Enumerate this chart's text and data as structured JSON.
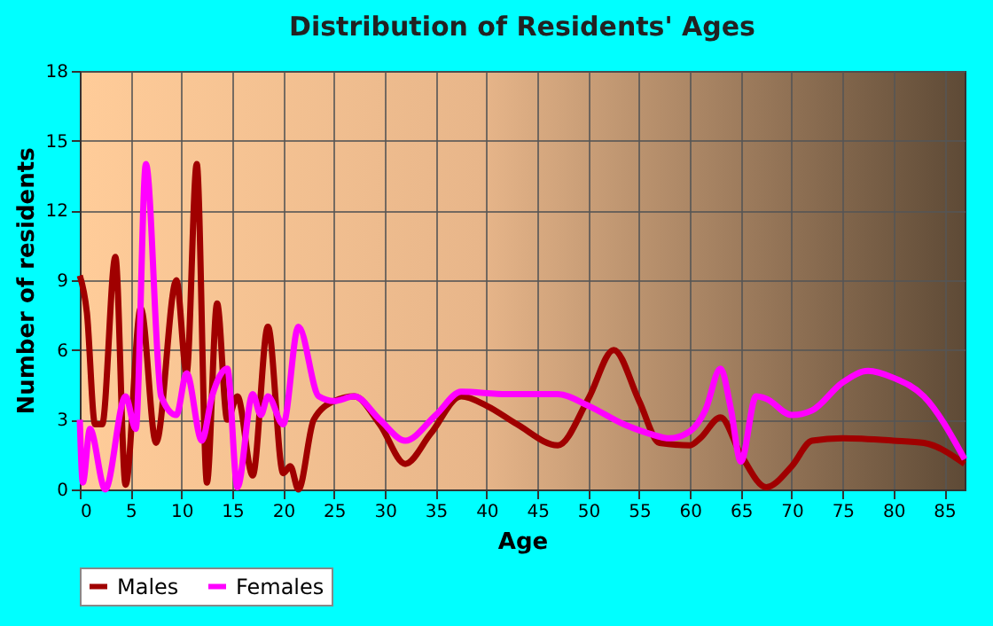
{
  "chart_data": {
    "type": "line",
    "title": "Distribution of Residents' Ages",
    "xlabel": "Age",
    "ylabel": "Number of residents",
    "xlim": [
      0,
      87
    ],
    "xticks": [
      0,
      5,
      10,
      15,
      20,
      25,
      30,
      35,
      40,
      45,
      50,
      55,
      60,
      65,
      70,
      75,
      80,
      85
    ],
    "ylim": [
      0,
      18
    ],
    "yticks": [
      0,
      3,
      6,
      9,
      12,
      15,
      18
    ],
    "grid": true,
    "legend": "bottom",
    "line_style": "solid",
    "marker": "none",
    "series": [
      {
        "name": "Males",
        "color": "#a00000",
        "x": [
          0,
          0.7,
          1.5,
          2.2,
          3.5,
          4.5,
          6,
          7.5,
          9.5,
          10.5,
          11.5,
          12.5,
          13.5,
          14.5,
          15.5,
          17,
          18.5,
          20,
          20.7,
          21.5,
          23,
          25,
          27,
          29.5,
          32,
          34.5,
          37.5,
          40,
          43,
          47,
          50,
          52.5,
          55,
          57,
          60,
          61,
          63,
          65,
          67.5,
          70,
          72,
          75,
          80,
          83,
          87
        ],
        "values": [
          9.2,
          7.6,
          2.8,
          2.8,
          10,
          0.2,
          7.8,
          2,
          9,
          5,
          14,
          0.3,
          8,
          3,
          4,
          0.6,
          7,
          0.7,
          1,
          0,
          3,
          3.8,
          4,
          2.8,
          1.1,
          2.4,
          4,
          3.6,
          2.8,
          1.9,
          3.9,
          6,
          3.8,
          2,
          1.9,
          2.2,
          3.1,
          1.5,
          0.1,
          1,
          2.1,
          2.2,
          2.1,
          2,
          1.1
        ]
      },
      {
        "name": "Females",
        "color": "#ff00ff",
        "x": [
          0,
          0.3,
          1,
          2.5,
          4.5,
          5.5,
          6.5,
          8,
          9.5,
          10.5,
          12,
          13,
          14.5,
          15.5,
          17,
          17.8,
          18.5,
          20,
          21.5,
          23.5,
          25,
          27,
          29.5,
          32,
          35,
          37.5,
          42,
          47,
          50,
          53.5,
          56,
          58,
          60,
          61.5,
          63,
          64,
          65,
          66.5,
          67.5,
          70,
          72,
          75,
          77.5,
          80,
          83,
          87
        ],
        "values": [
          3,
          0.3,
          2.6,
          0,
          4,
          2.6,
          14,
          4,
          3.2,
          5,
          2.1,
          4,
          5.2,
          0.1,
          4.1,
          3.2,
          4,
          2.8,
          7,
          4,
          3.8,
          4,
          3,
          2.1,
          3.2,
          4.2,
          4.1,
          4.1,
          3.6,
          2.8,
          2.4,
          2.2,
          2.5,
          3.4,
          5.2,
          3.5,
          1.2,
          4,
          3.9,
          3.2,
          3.4,
          4.6,
          5.1,
          4.8,
          4,
          1.3
        ]
      }
    ]
  }
}
